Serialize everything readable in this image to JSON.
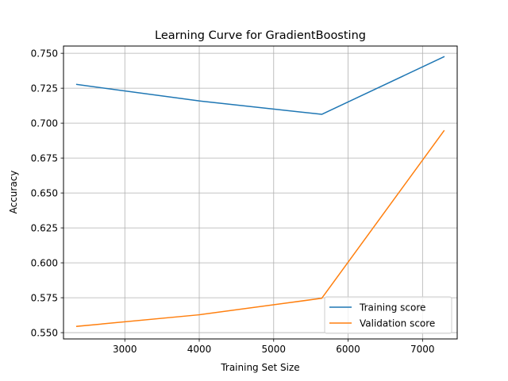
{
  "chart_data": {
    "type": "line",
    "title": "Learning Curve for GradientBoosting",
    "xlabel": "Training Set Size",
    "ylabel": "Accuracy",
    "xlim": [
      2176,
      7466
    ],
    "ylim": [
      0.5455,
      0.7552
    ],
    "xticks": [
      3000,
      4000,
      5000,
      6000,
      7000
    ],
    "yticks": [
      0.55,
      0.575,
      0.6,
      0.625,
      0.65,
      0.675,
      0.7,
      0.725,
      0.75
    ],
    "xtick_labels": [
      "3000",
      "4000",
      "5000",
      "6000",
      "7000"
    ],
    "ytick_labels": [
      "0.550",
      "0.575",
      "0.600",
      "0.625",
      "0.650",
      "0.675",
      "0.700",
      "0.725",
      "0.750"
    ],
    "grid": true,
    "legend_position": "lower-right",
    "series": [
      {
        "name": "Training score",
        "color": "#1f77b4",
        "x": [
          2354,
          4000,
          5646,
          7288
        ],
        "y": [
          0.7277,
          0.7159,
          0.7063,
          0.7475
        ]
      },
      {
        "name": "Validation score",
        "color": "#ff7f0e",
        "x": [
          2354,
          4000,
          5646,
          7288
        ],
        "y": [
          0.5545,
          0.5628,
          0.5746,
          0.6945
        ]
      }
    ]
  }
}
